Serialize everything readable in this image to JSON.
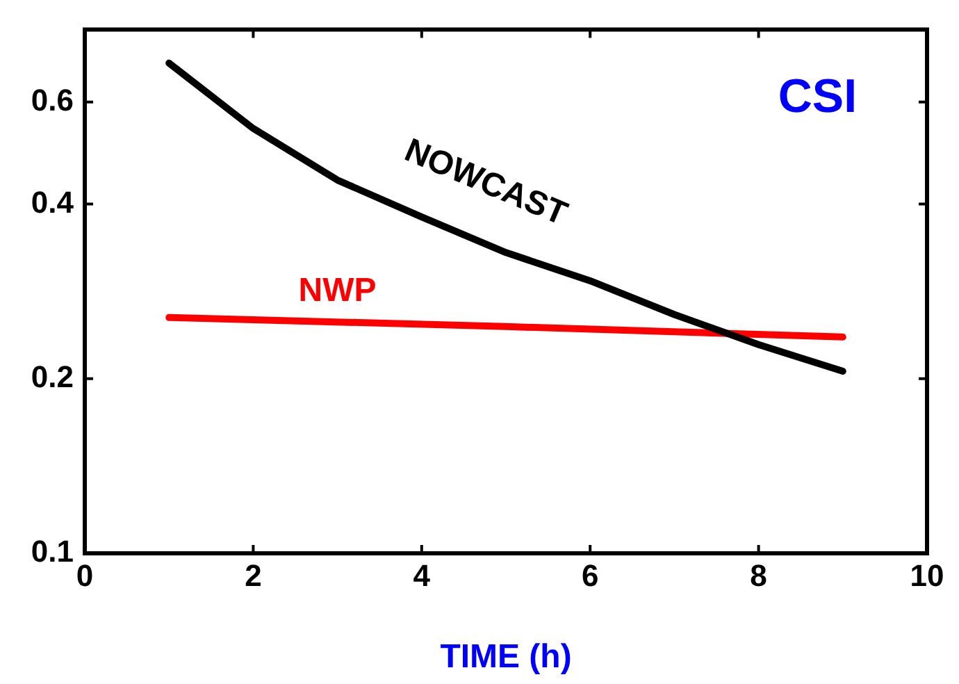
{
  "chart_data": {
    "type": "line",
    "title": "CSI",
    "xlabel": "TIME (h)",
    "log": "y",
    "grid": false,
    "legend": false,
    "marker": "none",
    "line_style": "solid",
    "xlim": [
      0,
      10
    ],
    "xticks": [
      0,
      2,
      4,
      6,
      8,
      10
    ],
    "ylim": [
      0.1,
      0.8
    ],
    "yticks": [
      0.1,
      0.2,
      0.4,
      0.6
    ],
    "series": [
      {
        "name": "NOWCAST",
        "color": "#000000",
        "x": [
          1,
          2,
          3,
          4,
          5,
          6,
          7,
          8,
          9
        ],
        "values": [
          0.7,
          0.54,
          0.44,
          0.38,
          0.33,
          0.295,
          0.258,
          0.229,
          0.206
        ]
      },
      {
        "name": "NWP",
        "color": "#ff0000",
        "x": [
          1,
          5,
          9
        ],
        "values": [
          0.255,
          0.246,
          0.236
        ]
      }
    ]
  }
}
